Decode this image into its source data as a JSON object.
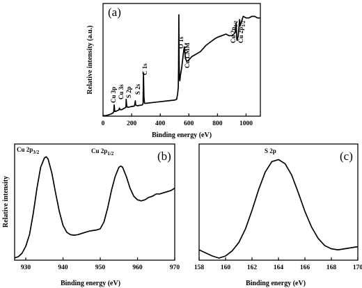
{
  "chart_data": [
    {
      "type": "line",
      "panel_label": "(a)",
      "xlabel": "Binding energy (eV)",
      "ylabel": "Relative intensity (a.u.)",
      "xlim": [
        0,
        1100
      ],
      "x_ticks": [
        0,
        200,
        400,
        600,
        800,
        1000
      ],
      "y_ticks": false,
      "series": [
        {
          "x": [
            0,
            20,
            40,
            60,
            70,
            75,
            78,
            82,
            90,
            100,
            110,
            115,
            120,
            130,
            150,
            160,
            162,
            164,
            168,
            175,
            190,
            200,
            220,
            226,
            228,
            232,
            240,
            260,
            275,
            280,
            283,
            286,
            290,
            300,
            350,
            400,
            450,
            500,
            515,
            522,
            526,
            528,
            530,
            531,
            532,
            534,
            537,
            542,
            550,
            560,
            568,
            572,
            576,
            585,
            600,
            620,
            640,
            660,
            680,
            700,
            720,
            750,
            780,
            800,
            830,
            860,
            880,
            900,
            915,
            925,
            930,
            933,
            935,
            938,
            945,
            950,
            953,
            955,
            958,
            965,
            980,
            1000,
            1020,
            1040,
            1060,
            1080,
            1100
          ],
          "y": [
            0.3,
            0.4,
            0.8,
            1.5,
            2.0,
            2.8,
            7.0,
            3.0,
            3.0,
            3.5,
            3.8,
            5.0,
            4.0,
            4.0,
            5.0,
            5.5,
            10.5,
            7.5,
            5.8,
            5.5,
            5.8,
            6.0,
            6.3,
            9.5,
            7.0,
            6.8,
            6.5,
            6.8,
            7.0,
            8.0,
            27.0,
            12.0,
            8.0,
            8.0,
            8.5,
            9.0,
            9.5,
            10.0,
            10.5,
            14.0,
            18.0,
            30.0,
            63.0,
            48.0,
            35.0,
            24.0,
            22.0,
            26.0,
            30.0,
            38.0,
            43.0,
            40.0,
            36.0,
            34.0,
            35.0,
            37.0,
            38.0,
            39.0,
            40.0,
            42.0,
            44.0,
            46.0,
            48.0,
            49.0,
            50.0,
            51.0,
            50.0,
            50.0,
            51.0,
            52.0,
            58.0,
            53.0,
            48.0,
            47.0,
            50.0,
            55.0,
            58.0,
            60.0,
            56.0,
            58.0,
            62.0,
            61.0,
            61.0,
            62.0,
            62.0,
            61.0,
            61.0
          ]
        }
      ],
      "annotations": [
        "Cu 3p",
        "Cu 3s",
        "S 2p",
        "S 2s",
        "C 1s",
        "O 1s",
        "Cu LMM",
        "Cu 2p3/2",
        "Cu 2p1/2"
      ]
    },
    {
      "type": "line",
      "panel_label": "(b)",
      "xlabel": "Binding energy (eV)",
      "ylabel": "Relative intensity",
      "xlim": [
        927,
        970
      ],
      "x_ticks": [
        930,
        940,
        950,
        960,
        970
      ],
      "y_ticks": false,
      "series": [
        {
          "x": [
            927,
            928,
            929,
            930,
            931,
            932,
            933,
            934,
            935,
            935.5,
            936,
            937,
            938,
            939,
            940,
            941,
            942,
            943,
            944,
            945,
            946,
            947,
            948,
            949,
            950,
            951,
            952,
            953,
            954,
            955,
            955.5,
            956,
            957,
            958,
            959,
            960,
            961,
            962,
            963,
            964,
            965,
            966,
            967,
            968,
            969,
            970
          ],
          "y": [
            2,
            3,
            6,
            12,
            22,
            40,
            62,
            80,
            88,
            89,
            87,
            75,
            58,
            42,
            30,
            24,
            22,
            21.5,
            22,
            23,
            24,
            25,
            25.5,
            26,
            27,
            33,
            45,
            60,
            72,
            80,
            81,
            80,
            72,
            62,
            55,
            52,
            51,
            52,
            54,
            55,
            57,
            57,
            58,
            59,
            60,
            62
          ]
        }
      ],
      "annotations": [
        "Cu 2p3/2",
        "Cu 2p1/2"
      ]
    },
    {
      "type": "line",
      "panel_label": "(c)",
      "xlabel": "Binding energy (eV)",
      "ylabel": "",
      "xlim": [
        158,
        170
      ],
      "x_ticks": [
        158,
        160,
        162,
        164,
        166,
        168,
        170
      ],
      "y_ticks": false,
      "series": [
        {
          "x": [
            158,
            158.5,
            159,
            159.5,
            160,
            160.5,
            161,
            161.5,
            162,
            162.5,
            163,
            163.5,
            164,
            164.5,
            165,
            165.5,
            166,
            166.5,
            167,
            167.5,
            168,
            168.5,
            169,
            169.5,
            170
          ],
          "y": [
            10,
            7,
            4,
            2,
            4,
            9,
            17,
            30,
            48,
            68,
            85,
            95,
            97,
            93,
            82,
            65,
            47,
            32,
            21,
            14,
            11,
            10,
            11,
            12,
            13
          ]
        }
      ],
      "annotations": [
        "S 2p"
      ]
    }
  ],
  "text": {
    "a_label": "(a)",
    "b_label": "(b)",
    "c_label": "(c)",
    "a_xlabel": "Binding energy (eV)",
    "a_ylabel": "Relative intensity (a.u.)",
    "b_xlabel": "Binding energy (eV)",
    "b_ylabel": "Relative intensity",
    "c_xlabel": "Binding energy (eV)"
  }
}
